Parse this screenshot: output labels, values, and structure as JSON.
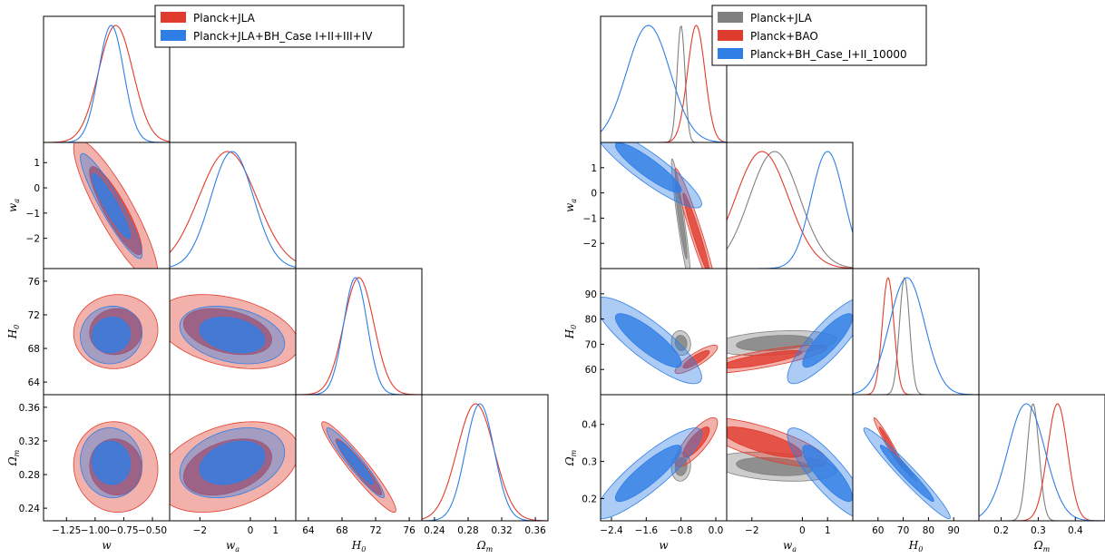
{
  "chart_data": [
    {
      "type": "triangle-corner",
      "params": [
        {
          "key": "w",
          "label": "w",
          "sub": "",
          "range": [
            -1.45,
            -0.35
          ],
          "ticks": [
            -1.25,
            -1.0,
            -0.75,
            -0.5
          ],
          "tick_labels": [
            "−1.25",
            "−1.00",
            "−0.75",
            "−0.50"
          ]
        },
        {
          "key": "wa",
          "label": "w",
          "sub": "a",
          "range": [
            -3.2,
            1.8
          ],
          "ticks": [
            -2,
            0,
            1
          ],
          "tick_labels": [
            "−2",
            "0",
            "1"
          ],
          "y_ticks": [
            -2,
            -1,
            0,
            1
          ],
          "y_tick_labels": [
            "−2",
            "−1",
            "0",
            "1"
          ]
        },
        {
          "key": "H0",
          "label": "H",
          "sub": "0",
          "range": [
            62.5,
            77.5
          ],
          "ticks": [
            64,
            68,
            72,
            76
          ],
          "tick_labels": [
            "64",
            "68",
            "72",
            "76"
          ]
        },
        {
          "key": "Om",
          "label": "Ω",
          "sub": "m",
          "range": [
            0.225,
            0.375
          ],
          "ticks": [
            0.24,
            0.28,
            0.32,
            0.36
          ],
          "tick_labels": [
            "0.24",
            "0.28",
            "0.32",
            "0.36"
          ]
        }
      ],
      "legend": [
        {
          "name": "Planck+JLA",
          "color": "#e03c2e"
        },
        {
          "name": "Planck+JLA+BH_Case I+II+III+IV",
          "color": "#2f7ee6"
        }
      ],
      "series": [
        {
          "name": "Planck+JLA",
          "color": "#e03c2e",
          "mean": {
            "w": -0.82,
            "wa": -0.9,
            "H0": 70.0,
            "Om": 0.289
          },
          "sd": {
            "w": 0.15,
            "wa": 1.15,
            "H0": 1.8,
            "Om": 0.022
          },
          "corr": {
            "w-wa": -0.88,
            "w-H0": 0.05,
            "w-Om": -0.05,
            "wa-H0": -0.35,
            "wa-Om": 0.35,
            "H0-Om": -0.95
          }
        },
        {
          "name": "Planck+JLA+BH_Case I+II+III+IV",
          "color": "#2f7ee6",
          "mean": {
            "w": -0.86,
            "wa": -0.72,
            "H0": 69.6,
            "Om": 0.294
          },
          "sd": {
            "w": 0.11,
            "wa": 0.85,
            "H0": 1.4,
            "Om": 0.017
          },
          "corr": {
            "w-wa": -0.92,
            "w-H0": 0.05,
            "w-Om": -0.05,
            "wa-H0": -0.3,
            "wa-Om": 0.3,
            "H0-Om": -0.95
          }
        }
      ]
    },
    {
      "type": "triangle-corner",
      "params": [
        {
          "key": "w",
          "label": "w",
          "sub": "",
          "range": [
            -2.65,
            0.25
          ],
          "ticks": [
            -2.4,
            -1.6,
            -0.8,
            0.0
          ],
          "tick_labels": [
            "−2.4",
            "−1.6",
            "−0.8",
            "0.0"
          ]
        },
        {
          "key": "wa",
          "label": "w",
          "sub": "a",
          "range": [
            -3.0,
            2.0
          ],
          "ticks": [
            -2,
            0,
            1
          ],
          "tick_labels": [
            "−2",
            "0",
            "1"
          ],
          "y_ticks": [
            -2,
            -1,
            0,
            1
          ],
          "y_tick_labels": [
            "−2",
            "−1",
            "0",
            "1"
          ]
        },
        {
          "key": "H0",
          "label": "H",
          "sub": "0",
          "range": [
            50,
            100
          ],
          "ticks": [
            60,
            70,
            80,
            90
          ],
          "tick_labels": [
            "60",
            "70",
            "80",
            "90"
          ]
        },
        {
          "key": "Om",
          "label": "Ω",
          "sub": "m",
          "range": [
            0.14,
            0.48
          ],
          "ticks": [
            0.2,
            0.3,
            0.4
          ],
          "tick_labels": [
            "0.2",
            "0.3",
            "0.4"
          ]
        }
      ],
      "legend": [
        {
          "name": "Planck+JLA",
          "color": "#808080"
        },
        {
          "name": "Planck+BAO",
          "color": "#e03c2e"
        },
        {
          "name": "Planck+BH_Case_I+II_10000",
          "color": "#2f7ee6"
        }
      ],
      "series": [
        {
          "name": "Planck+JLA",
          "color": "#808080",
          "mean": {
            "w": -0.8,
            "wa": -1.1,
            "H0": 70.5,
            "Om": 0.286
          },
          "sd": {
            "w": 0.09,
            "wa": 1.0,
            "H0": 2.0,
            "Om": 0.016
          },
          "corr": {
            "w-wa": -0.93,
            "w-H0": -0.1,
            "w-Om": 0.1,
            "wa-H0": 0.3,
            "wa-Om": -0.3,
            "H0-Om": -0.97
          }
        },
        {
          "name": "Planck+BAO",
          "color": "#e03c2e",
          "mean": {
            "w": -0.45,
            "wa": -1.6,
            "H0": 64.0,
            "Om": 0.352
          },
          "sd": {
            "w": 0.2,
            "wa": 1.05,
            "H0": 2.3,
            "Om": 0.027
          },
          "corr": {
            "w-wa": -0.96,
            "w-H0": 0.85,
            "w-Om": 0.8,
            "wa-H0": 0.8,
            "wa-Om": -0.75,
            "H0-Om": -0.97
          }
        },
        {
          "name": "Planck+BH_Case_I+II_10000",
          "color": "#2f7ee6",
          "mean": {
            "w": -1.55,
            "wa": 1.0,
            "H0": 71.5,
            "Om": 0.268
          },
          "sd": {
            "w": 0.5,
            "wa": 0.65,
            "H0": 7.0,
            "Om": 0.05
          },
          "corr": {
            "w-wa": -0.9,
            "w-H0": -0.85,
            "w-Om": 0.88,
            "wa-H0": 0.85,
            "wa-Om": -0.85,
            "H0-Om": -0.97
          }
        }
      ]
    }
  ]
}
